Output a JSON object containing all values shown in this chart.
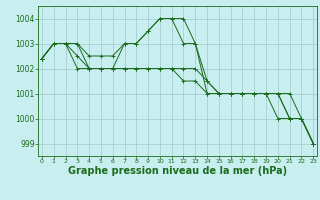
{
  "bg_color": "#c8eef0",
  "grid_color": "#a0c8cc",
  "line_color": "#1a6b1a",
  "xlabel": "Graphe pression niveau de la mer (hPa)",
  "xlabel_fontsize": 7,
  "ylim": [
    998.5,
    1004.5
  ],
  "yticks": [
    999,
    1000,
    1001,
    1002,
    1003,
    1004
  ],
  "xlim": [
    -0.3,
    23.3
  ],
  "xticks": [
    0,
    1,
    2,
    3,
    4,
    5,
    6,
    7,
    8,
    9,
    10,
    11,
    12,
    13,
    14,
    15,
    16,
    17,
    18,
    19,
    20,
    21,
    22,
    23
  ],
  "series": [
    [
      1002.4,
      1003.0,
      1003.0,
      1003.0,
      1002.0,
      1002.0,
      1002.0,
      1003.0,
      1003.0,
      1003.5,
      1004.0,
      1004.0,
      1003.0,
      1003.0,
      1001.0,
      1001.0,
      1001.0,
      1001.0,
      1001.0,
      1001.0,
      1001.0,
      1000.0,
      1000.0,
      999.0
    ],
    [
      1002.4,
      1003.0,
      1003.0,
      1002.0,
      1002.0,
      1002.0,
      1002.0,
      1002.0,
      1002.0,
      1002.0,
      1002.0,
      1002.0,
      1002.0,
      1002.0,
      1001.5,
      1001.0,
      1001.0,
      1001.0,
      1001.0,
      1001.0,
      1001.0,
      1001.0,
      1000.0,
      999.0
    ],
    [
      1002.4,
      1003.0,
      1003.0,
      1003.0,
      1002.5,
      1002.5,
      1002.5,
      1003.0,
      1003.0,
      1003.5,
      1004.0,
      1004.0,
      1004.0,
      1003.0,
      1001.5,
      1001.0,
      1001.0,
      1001.0,
      1001.0,
      1001.0,
      1001.0,
      1000.0,
      1000.0,
      999.0
    ],
    [
      1002.4,
      1003.0,
      1003.0,
      1002.5,
      1002.0,
      1002.0,
      1002.0,
      1002.0,
      1002.0,
      1002.0,
      1002.0,
      1002.0,
      1001.5,
      1001.5,
      1001.0,
      1001.0,
      1001.0,
      1001.0,
      1001.0,
      1001.0,
      1000.0,
      1000.0,
      1000.0,
      999.0
    ]
  ]
}
